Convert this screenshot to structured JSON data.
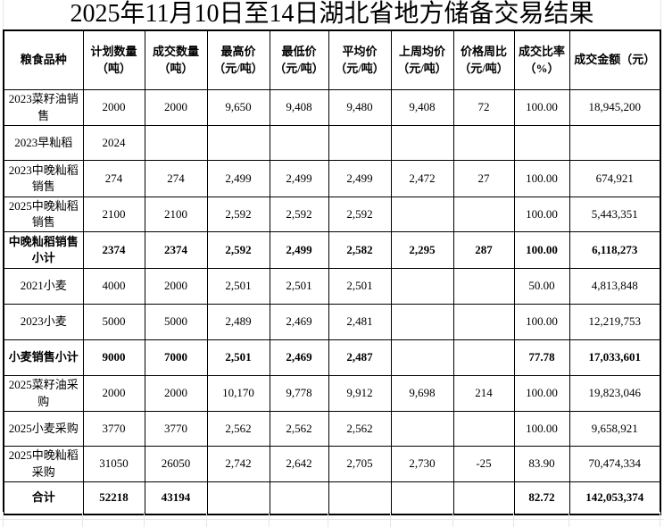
{
  "title": "2025年11月10日至14日湖北省地方储备交易结果",
  "colors": {
    "text": "#000000",
    "border": "#000000",
    "background": "#ffffff",
    "faint_gridline": "#e6e6e6"
  },
  "table": {
    "headers": [
      "粮食品种",
      "计划数量\n（吨）",
      "成交数量\n（吨）",
      "最高价\n（元/吨）",
      "最低价\n（元/吨）",
      "平均价\n（元/吨）",
      "上周均价\n（元/吨）",
      "价格周比\n（元/吨）",
      "成交比率\n（%）",
      "成交金额（元）"
    ],
    "rows": [
      {
        "type": "data",
        "cells": [
          "2023菜籽油销售",
          "2000",
          "2000",
          "9,650",
          "9,408",
          "9,480",
          "9,408",
          "72",
          "100.00",
          "18,945,200"
        ]
      },
      {
        "type": "data",
        "cells": [
          "2023早籼稻",
          "2024",
          "",
          "",
          "",
          "",
          "",
          "",
          "",
          ""
        ]
      },
      {
        "type": "data",
        "cells": [
          "2023中晚籼稻销售",
          "274",
          "274",
          "2,499",
          "2,499",
          "2,499",
          "2,472",
          "27",
          "100.00",
          "674,921"
        ]
      },
      {
        "type": "data",
        "cells": [
          "2025中晚籼稻销售",
          "2100",
          "2100",
          "2,592",
          "2,592",
          "2,592",
          "",
          "",
          "100.00",
          "5,443,351"
        ]
      },
      {
        "type": "subtotal",
        "cells": [
          "中晚籼稻销售小计",
          "2374",
          "2374",
          "2,592",
          "2,499",
          "2,582",
          "2,295",
          "287",
          "100.00",
          "6,118,273"
        ]
      },
      {
        "type": "data",
        "cells": [
          "2021小麦",
          "4000",
          "2000",
          "2,501",
          "2,501",
          "2,501",
          "",
          "",
          "50.00",
          "4,813,848"
        ]
      },
      {
        "type": "data",
        "cells": [
          "2023小麦",
          "5000",
          "5000",
          "2,489",
          "2,469",
          "2,481",
          "",
          "",
          "100.00",
          "12,219,753"
        ]
      },
      {
        "type": "subtotal",
        "cells": [
          "小麦销售小计",
          "9000",
          "7000",
          "2,501",
          "2,469",
          "2,487",
          "",
          "",
          "77.78",
          "17,033,601"
        ]
      },
      {
        "type": "data",
        "cells": [
          "2025菜籽油采购",
          "2000",
          "2000",
          "10,170",
          "9,778",
          "9,912",
          "9,698",
          "214",
          "100.00",
          "19,823,046"
        ]
      },
      {
        "type": "data",
        "cells": [
          "2025小麦采购",
          "3770",
          "3770",
          "2,562",
          "2,562",
          "2,562",
          "",
          "",
          "100.00",
          "9,658,921"
        ]
      },
      {
        "type": "data",
        "cells": [
          "2025中晚籼稻采购",
          "31050",
          "26050",
          "2,742",
          "2,642",
          "2,705",
          "2,730",
          "-25",
          "83.90",
          "70,474,334"
        ]
      },
      {
        "type": "total",
        "cells": [
          "合计",
          "52218",
          "43194",
          "",
          "",
          "",
          "",
          "",
          "82.72",
          "142,053,374"
        ]
      }
    ]
  }
}
